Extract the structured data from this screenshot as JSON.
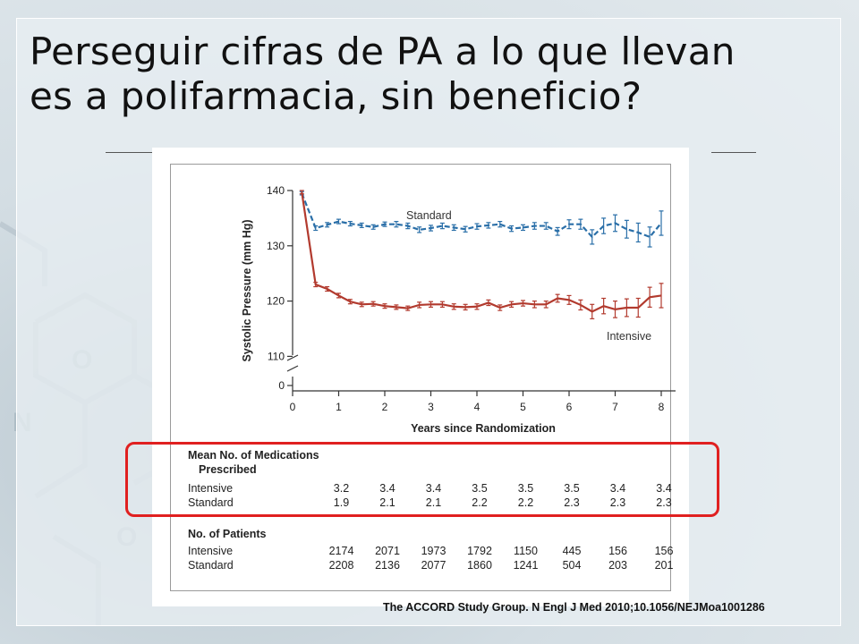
{
  "slide": {
    "title_line1": "Perseguir cifras de PA a lo que llevan",
    "title_line2": "es a polifarmacia, sin beneficio?",
    "citation": "The ACCORD Study Group. N Engl J Med 2010;10.1056/NEJMoa1001286",
    "highlight_color": "#e02020"
  },
  "chart_data": {
    "type": "line",
    "xlabel": "Years since Randomization",
    "ylabel": "Systolic Pressure (mm Hg)",
    "xlim": [
      0,
      8.3
    ],
    "ylim": [
      110,
      140
    ],
    "y_axis_break": true,
    "xticks": [
      "0",
      "1",
      "2",
      "3",
      "4",
      "5",
      "6",
      "7",
      "8"
    ],
    "yticks": [
      "0",
      "110",
      "120",
      "130",
      "140"
    ],
    "series": [
      {
        "name": "Standard",
        "color": "#2a6fa8",
        "style": "dashed",
        "x": [
          0.2,
          0.5,
          0.75,
          1.0,
          1.25,
          1.5,
          1.75,
          2.0,
          2.25,
          2.5,
          2.75,
          3.0,
          3.25,
          3.5,
          3.75,
          4.0,
          4.25,
          4.5,
          4.75,
          5.0,
          5.25,
          5.5,
          5.75,
          6.0,
          6.25,
          6.5,
          6.75,
          7.0,
          7.25,
          7.5,
          7.75,
          8.0
        ],
        "values": [
          139.5,
          133.2,
          133.8,
          134.4,
          134.0,
          133.7,
          133.4,
          133.9,
          133.9,
          133.6,
          132.9,
          133.2,
          133.6,
          133.3,
          133.0,
          133.5,
          133.7,
          133.9,
          133.1,
          133.3,
          133.6,
          133.6,
          132.6,
          133.9,
          133.9,
          131.6,
          133.6,
          134.1,
          133.0,
          132.4,
          131.6,
          134.1
        ],
        "errors": [
          0.3,
          0.4,
          0.4,
          0.4,
          0.4,
          0.4,
          0.4,
          0.4,
          0.5,
          0.5,
          0.5,
          0.5,
          0.5,
          0.5,
          0.5,
          0.5,
          0.5,
          0.5,
          0.5,
          0.5,
          0.6,
          0.6,
          0.7,
          0.8,
          0.9,
          1.3,
          1.4,
          1.5,
          1.6,
          1.7,
          1.8,
          2.2
        ]
      },
      {
        "name": "Intensive",
        "color": "#b23a2e",
        "style": "solid",
        "x": [
          0.2,
          0.5,
          0.75,
          1.0,
          1.25,
          1.5,
          1.75,
          2.0,
          2.25,
          2.5,
          2.75,
          3.0,
          3.25,
          3.5,
          3.75,
          4.0,
          4.25,
          4.5,
          4.75,
          5.0,
          5.25,
          5.5,
          5.75,
          6.0,
          6.25,
          6.5,
          6.75,
          7.0,
          7.25,
          7.5,
          7.75,
          8.0
        ],
        "values": [
          139.7,
          123.0,
          122.2,
          121.0,
          119.9,
          119.4,
          119.5,
          119.1,
          118.9,
          118.7,
          119.3,
          119.4,
          119.4,
          119.0,
          118.9,
          119.0,
          119.7,
          118.8,
          119.4,
          119.6,
          119.4,
          119.4,
          120.5,
          120.2,
          119.3,
          118.1,
          119.1,
          118.5,
          118.8,
          118.8,
          120.7,
          121.0
        ]
      }
    ],
    "intensive_errors": [
      0.3,
      0.4,
      0.4,
      0.4,
      0.4,
      0.4,
      0.4,
      0.4,
      0.4,
      0.4,
      0.5,
      0.5,
      0.5,
      0.5,
      0.5,
      0.5,
      0.5,
      0.5,
      0.5,
      0.5,
      0.6,
      0.6,
      0.7,
      0.8,
      0.9,
      1.3,
      1.4,
      1.5,
      1.6,
      1.7,
      1.8,
      2.2
    ],
    "series_labels": [
      "Standard",
      "Intensive"
    ],
    "table_cols_x": [
      1,
      2,
      3,
      4,
      5,
      6,
      7,
      8
    ],
    "medications": {
      "header_line1": "Mean No. of Medications",
      "header_line2": "Prescribed",
      "rows": [
        {
          "label": "Intensive",
          "values": [
            "3.2",
            "3.4",
            "3.4",
            "3.5",
            "3.5",
            "3.5",
            "3.4",
            "3.4"
          ]
        },
        {
          "label": "Standard",
          "values": [
            "1.9",
            "2.1",
            "2.1",
            "2.2",
            "2.2",
            "2.3",
            "2.3",
            "2.3"
          ]
        }
      ]
    },
    "patients": {
      "header": "No. of Patients",
      "rows": [
        {
          "label": "Intensive",
          "values": [
            "2174",
            "2071",
            "1973",
            "1792",
            "1150",
            "445",
            "156",
            "156"
          ]
        },
        {
          "label": "Standard",
          "values": [
            "2208",
            "2136",
            "2077",
            "1860",
            "1241",
            "504",
            "203",
            "201"
          ]
        }
      ]
    }
  }
}
